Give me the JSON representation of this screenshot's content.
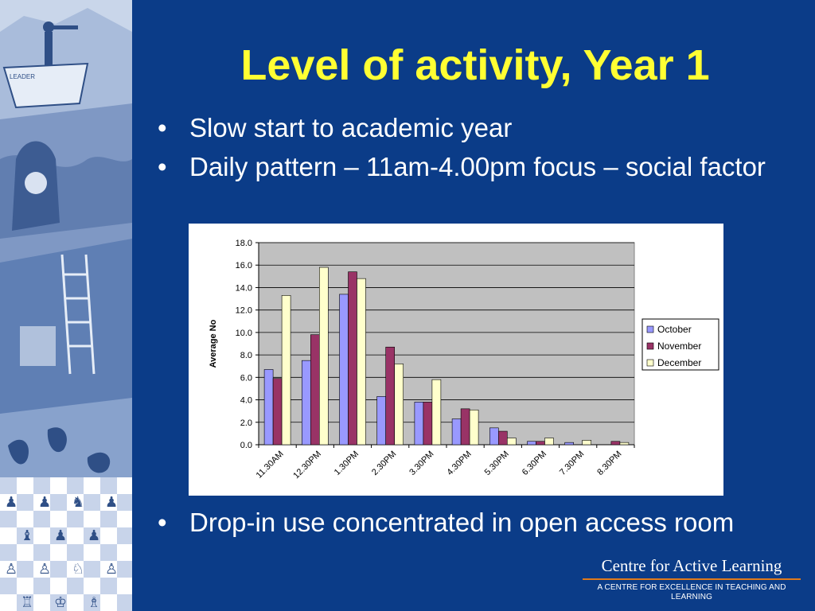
{
  "slide": {
    "title": "Level of activity, Year 1",
    "bullets": [
      "Slow start to academic year",
      "Daily pattern – 11am-4.00pm focus – social factor"
    ],
    "bullets_bottom": [
      "Drop-in use concentrated in open access room"
    ],
    "bullet_symbol": "•"
  },
  "brand": {
    "name": "Centre for Active Learning",
    "tagline": "A CENTRE FOR EXCELLENCE IN TEACHING AND LEARNING",
    "rule_color": "#e07a1b"
  },
  "colors": {
    "background": "#0b3c88",
    "title": "#ffff33",
    "text": "#ffffff"
  },
  "chart_data": {
    "type": "bar",
    "categories": [
      "11.30AM",
      "12.30PM",
      "1.30PM",
      "2.30PM",
      "3.30PM",
      "4.30PM",
      "5.30PM",
      "6.30PM",
      "7.30PM",
      "8.30PM"
    ],
    "series": [
      {
        "name": "October",
        "color": "#9999ff",
        "values": [
          6.7,
          7.5,
          13.4,
          4.3,
          3.8,
          2.3,
          1.5,
          0.3,
          0.2,
          0.0
        ]
      },
      {
        "name": "November",
        "color": "#993366",
        "values": [
          5.9,
          9.8,
          15.4,
          8.7,
          3.8,
          3.2,
          1.2,
          0.3,
          0.0,
          0.3
        ]
      },
      {
        "name": "December",
        "color": "#ffffcc",
        "values": [
          13.3,
          15.8,
          14.8,
          7.2,
          5.8,
          3.1,
          0.6,
          0.6,
          0.4,
          0.2
        ]
      }
    ],
    "title": "",
    "xlabel": "",
    "ylabel": "Average No",
    "ylim": [
      0,
      18
    ],
    "yticks": [
      "0.0",
      "2.0",
      "4.0",
      "6.0",
      "8.0",
      "10.0",
      "12.0",
      "14.0",
      "16.0",
      "18.0"
    ],
    "grid": true,
    "plot_background": "#c0c0c0",
    "legend_position": "right"
  }
}
